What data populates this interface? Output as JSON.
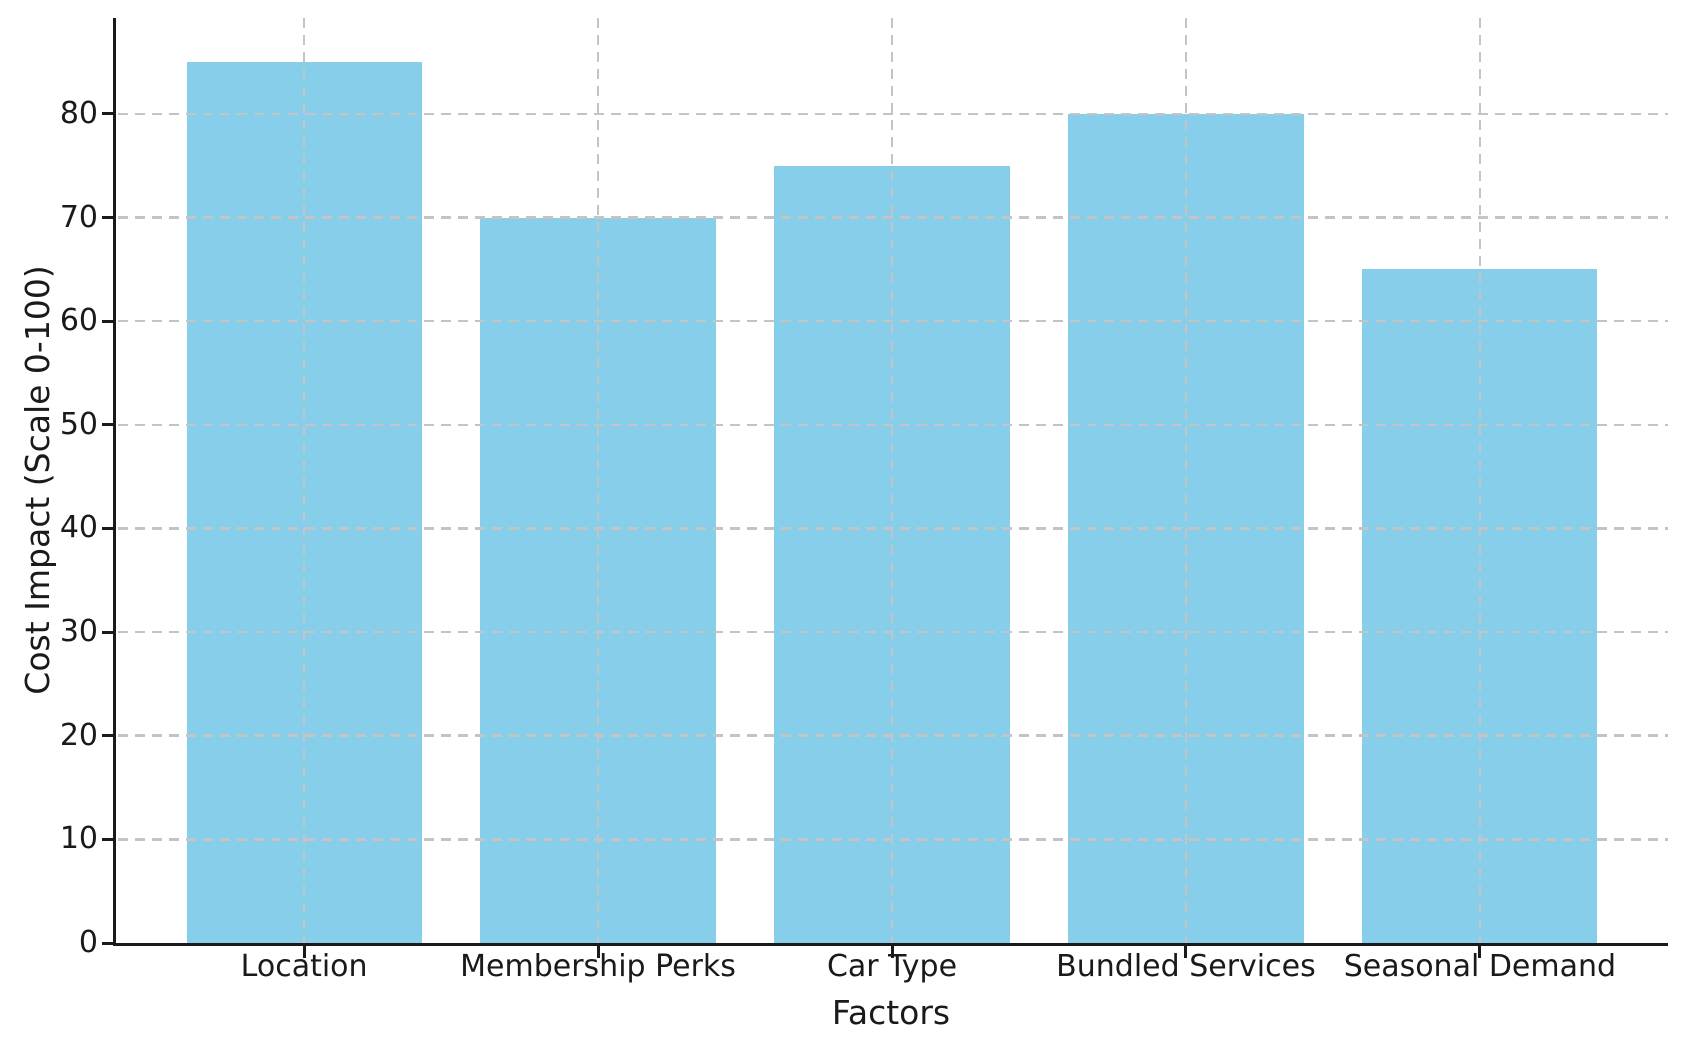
{
  "chart_data": {
    "type": "bar",
    "title": "",
    "categories": [
      "Location",
      "Membership Perks",
      "Car Type",
      "Bundled Services",
      "Seasonal Demand"
    ],
    "values": [
      85,
      70,
      75,
      80,
      65
    ],
    "xlabel": "Factors",
    "ylabel": "Cost Impact (Scale 0-100)",
    "ylim": [
      0,
      89.25
    ],
    "yticks": [
      0,
      10,
      20,
      30,
      40,
      50,
      60,
      70,
      80
    ],
    "legend_position": "none",
    "grid": "on",
    "grid_style": "dashed",
    "grid_above_bars": true,
    "bar_width_fraction": 0.8,
    "colors": {
      "bar": "#87CEEB",
      "grid": "#c4c4c4",
      "axis": "#1a1a1a",
      "text": "#1a1a1a",
      "background": "#ffffff"
    }
  }
}
